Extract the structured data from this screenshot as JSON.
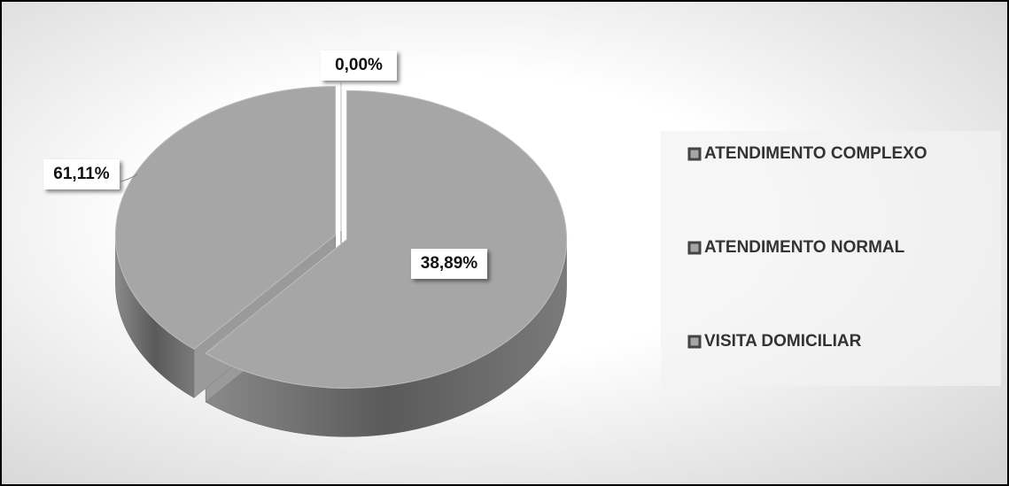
{
  "chart_data": {
    "type": "pie",
    "categories": [
      "ATENDIMENTO COMPLEXO",
      "ATENDIMENTO NORMAL",
      "VISITA DOMICILIAR"
    ],
    "values": [
      0,
      61.11,
      38.89
    ],
    "value_labels": [
      "0,00%",
      "61,11%",
      "38,89%"
    ],
    "colors": [
      "#a6a6a6",
      "#a6a6a6",
      "#a6a6a6"
    ],
    "legend": "right"
  }
}
